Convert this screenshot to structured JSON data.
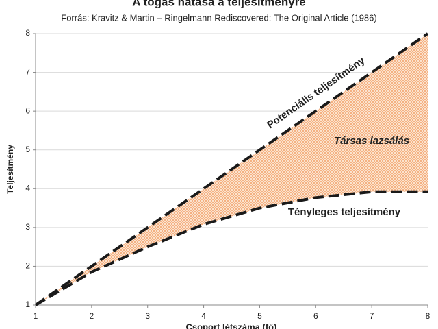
{
  "chart_data": {
    "type": "line",
    "title": "A tógás hatása a teljesítményre",
    "subtitle": "Forrás: Kravitz & Martin – Ringelmann Rediscovered: The Original Article (1986)",
    "x_label": "Csoport létszáma (fő)",
    "y_label": "Teljesítmény",
    "x": [
      1,
      2,
      3,
      4,
      5,
      6,
      7,
      8
    ],
    "series": [
      {
        "name": "Potenciális teljesítmény",
        "color": "#1a1a1a",
        "values": [
          1,
          2,
          3,
          4,
          5,
          6,
          7,
          8
        ]
      },
      {
        "name": "Tényleges teljesítmény",
        "color": "#1a1a1a",
        "values": [
          1,
          1.85,
          2.5,
          3.08,
          3.5,
          3.77,
          3.92,
          3.92
        ]
      }
    ],
    "fill_color": "#f4b183",
    "annotations": [
      "Társas lazsálás"
    ],
    "xlim": [
      1,
      8
    ],
    "xticks": [
      1,
      2,
      3,
      4,
      5,
      6,
      7,
      8
    ],
    "ylim": [
      1,
      8
    ],
    "yticks": [
      1,
      2,
      3,
      4,
      5,
      6,
      7,
      8
    ],
    "grid": true
  }
}
